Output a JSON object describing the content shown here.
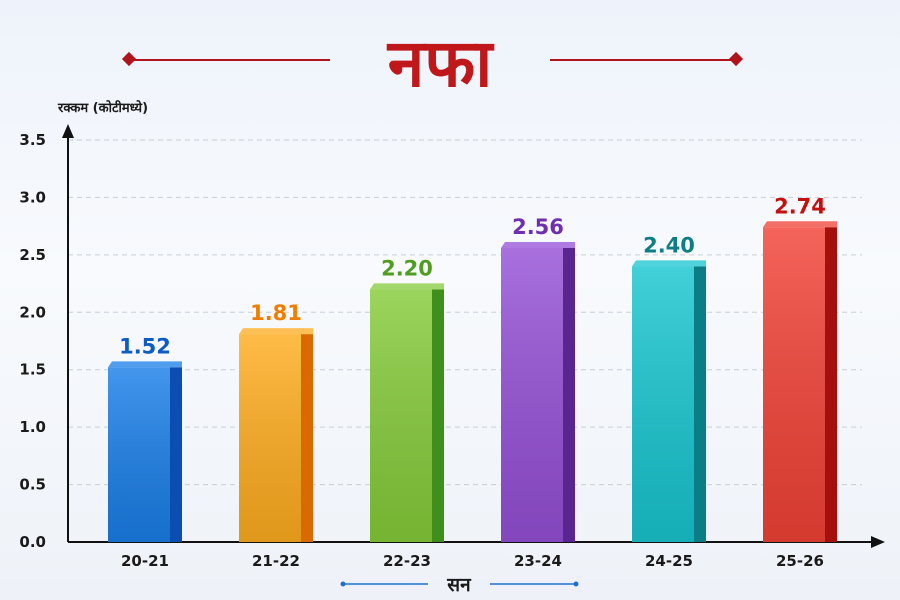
{
  "chart_data": {
    "type": "bar",
    "title": "नफा",
    "ylabel": "रक्कम (कोटीमध्ये)",
    "xlabel": "सन",
    "categories": [
      "20-21",
      "21-22",
      "22-23",
      "23-24",
      "24-25",
      "25-26"
    ],
    "values": [
      1.52,
      1.81,
      2.2,
      2.56,
      2.4,
      2.74
    ],
    "value_labels": [
      "1.52",
      "1.81",
      "2.20",
      "2.56",
      "2.40",
      "2.74"
    ],
    "ylim": [
      0,
      3.5
    ],
    "yticks": [
      "0.0",
      "0.5",
      "1.0",
      "1.5",
      "2.0",
      "2.5",
      "3.0",
      "3.5"
    ],
    "grid": true,
    "colors": [
      {
        "light": "#1a7fe8",
        "dark": "#0b4db0",
        "text": "#0d5cc4"
      },
      {
        "light": "#ffad1f",
        "dark": "#d96a00",
        "text": "#ef7d00"
      },
      {
        "light": "#86cc3a",
        "dark": "#3f8f1c",
        "text": "#4f9e1f"
      },
      {
        "light": "#9550d6",
        "dark": "#5a2591",
        "text": "#6f2fb0"
      },
      {
        "light": "#18c6d0",
        "dark": "#0b7d84",
        "text": "#0e7e86"
      },
      {
        "light": "#f24236",
        "dark": "#a5100c",
        "text": "#c3120e"
      }
    ],
    "title_color": "#c0171b"
  }
}
